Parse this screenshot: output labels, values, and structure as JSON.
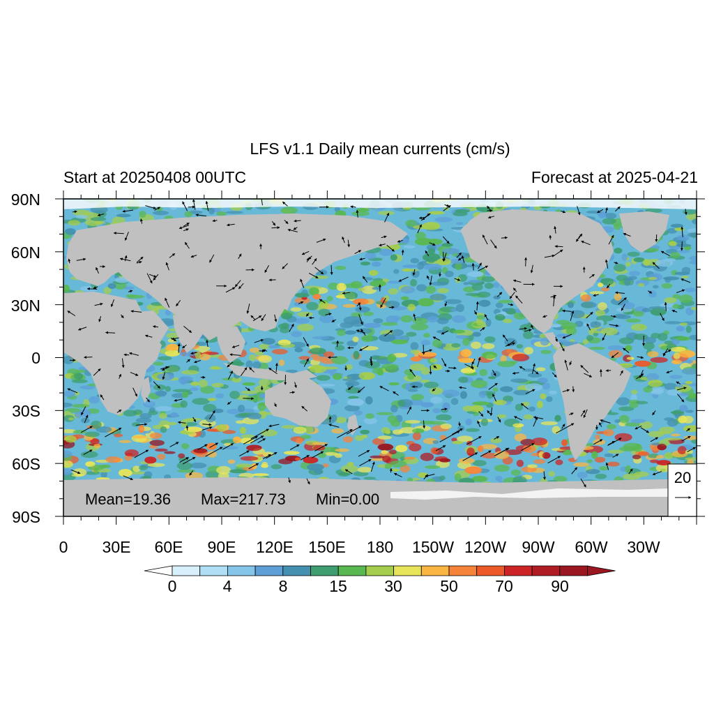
{
  "title": "LFS v1.1 Daily mean currents (cm/s)",
  "subtitle_left": "Start at 20250408 00UTC",
  "subtitle_right": "Forecast at 2025-04-21",
  "lat_labels": [
    "90N",
    "60N",
    "30N",
    "0",
    "30S",
    "60S",
    "90S"
  ],
  "lon_labels": [
    "0",
    "30E",
    "60E",
    "90E",
    "120E",
    "150E",
    "180",
    "150W",
    "120W",
    "90W",
    "60W",
    "30W"
  ],
  "stats": {
    "mean": "Mean=19.36",
    "max": "Max=217.73",
    "min": "Min=0.00"
  },
  "reference_vector": {
    "magnitude": "20",
    "arrow_glyph": "→"
  },
  "colorbar": {
    "tick_labels": [
      "0",
      "4",
      "8",
      "15",
      "30",
      "50",
      "70",
      "90"
    ],
    "colors": [
      "#ffffff",
      "#d8f0fb",
      "#b0def5",
      "#86c5ea",
      "#5e9fd8",
      "#4490b0",
      "#3e9e70",
      "#5ab850",
      "#a6ce4e",
      "#e8e45a",
      "#fbb542",
      "#f5843a",
      "#ec5a2a",
      "#cc2424",
      "#b01c24",
      "#9a1620"
    ]
  },
  "map_colors": {
    "land": "#c0c0c0",
    "ice": "#ffffff"
  }
}
